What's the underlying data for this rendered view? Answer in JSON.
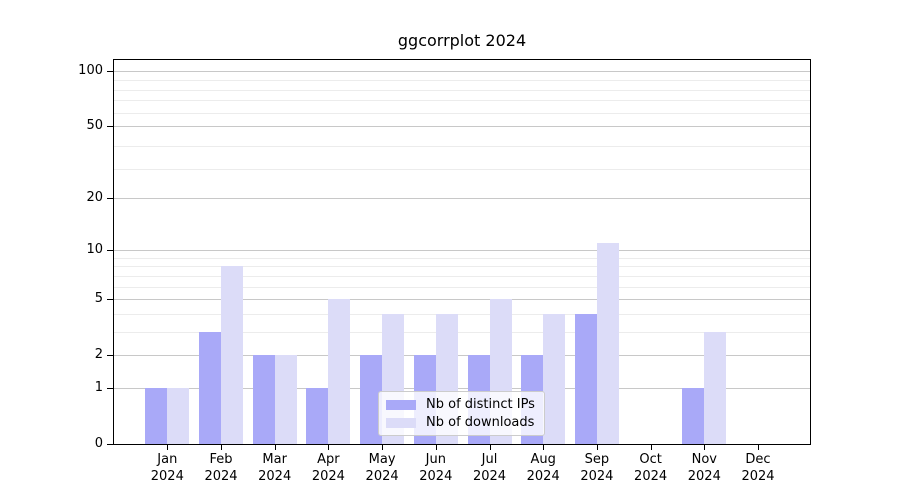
{
  "figure": {
    "background": "#ffffff"
  },
  "chart_data": {
    "type": "bar",
    "title": "ggcorrplot 2024",
    "x_categories": [
      "Jan 2024",
      "Feb 2024",
      "Mar 2024",
      "Apr 2024",
      "May 2024",
      "Jun 2024",
      "Jul 2024",
      "Aug 2024",
      "Sep 2024",
      "Oct 2024",
      "Nov 2024",
      "Dec 2024"
    ],
    "series": [
      {
        "name": "Nb of distinct IPs",
        "color": "#a9a9f8",
        "values": [
          1,
          3,
          2,
          1,
          2,
          2,
          2,
          2,
          4,
          0,
          1,
          0
        ]
      },
      {
        "name": "Nb of downloads",
        "color": "#dcdcf8",
        "values": [
          1,
          8,
          2,
          5,
          4,
          4,
          5,
          4,
          11,
          0,
          3,
          0
        ]
      }
    ],
    "yscale": "log1p",
    "ylim": [
      0,
      115
    ],
    "yticks": [
      0,
      1,
      2,
      5,
      10,
      20,
      50,
      100
    ],
    "minor_yticks": [
      3,
      4,
      6,
      7,
      8,
      9,
      29,
      39,
      59,
      69,
      79,
      89
    ],
    "grid": "horizontal major+minor",
    "legend_position": "lower center inside",
    "colors": {
      "grid_major": "#c8c8c8",
      "grid_minor": "#ececec",
      "spine": "#000000"
    }
  }
}
